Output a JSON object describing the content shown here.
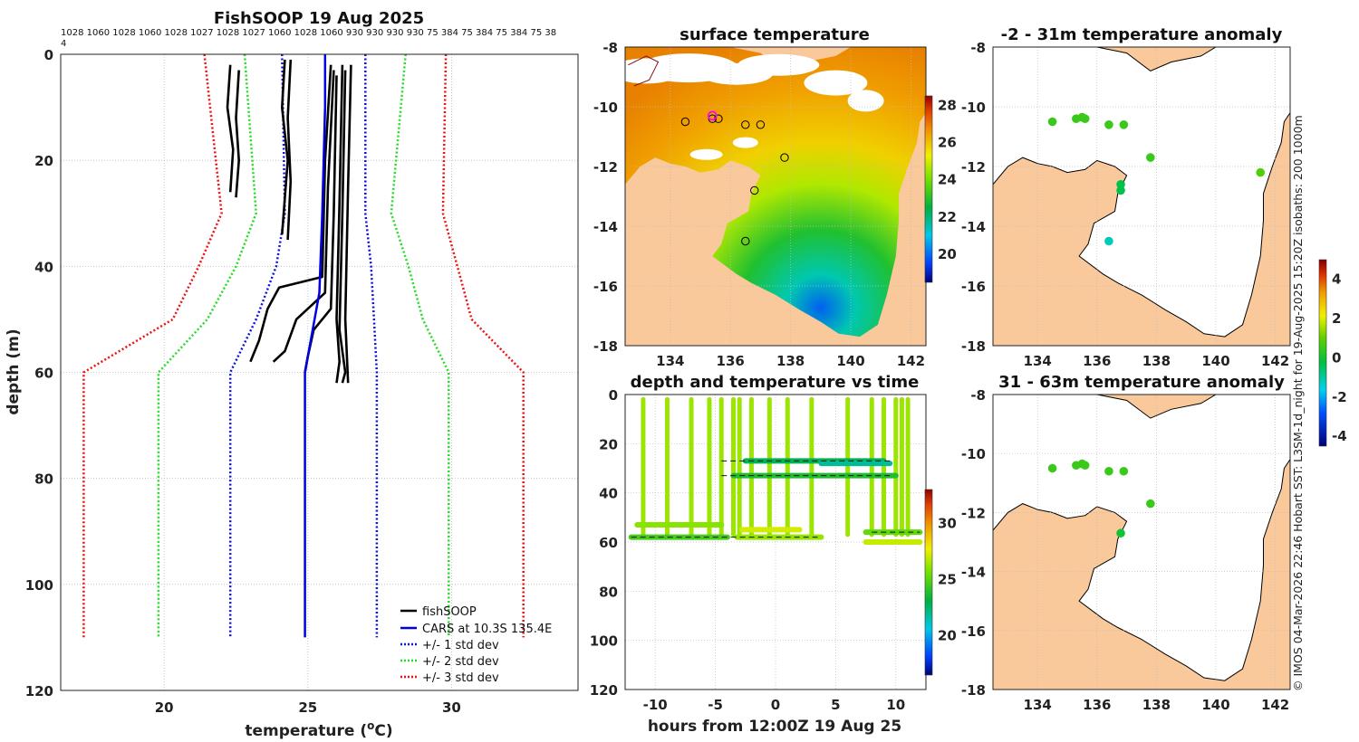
{
  "chart_data": [
    {
      "type": "line",
      "title": "FishSOOP 19 Aug 2025",
      "top_labels": [
        "1028 1060 1028 1060 1028 1027 1028 1027 1060 1028 1060 930 930 930 930 75 384 75 384 75 384 75 38",
        "4"
      ],
      "xlabel_pre": "temperature (",
      "xlabel_sup": "o",
      "xlabel_post": "C)",
      "ylabel": "depth (m)",
      "xlim": [
        16.4,
        34.4
      ],
      "ylim": [
        120,
        0
      ],
      "xticks": [
        20,
        25,
        30
      ],
      "yticks": [
        0,
        20,
        40,
        60,
        80,
        100,
        120
      ],
      "series": [
        {
          "name": "fishSOOP",
          "color": "#000000",
          "style": "solid",
          "profiles": [
            [
              [
                22.3,
                2
              ],
              [
                22.2,
                10
              ],
              [
                22.4,
                18
              ],
              [
                22.3,
                26
              ]
            ],
            [
              [
                22.6,
                3
              ],
              [
                22.5,
                12
              ],
              [
                22.6,
                20
              ],
              [
                22.5,
                27
              ]
            ],
            [
              [
                24.2,
                1
              ],
              [
                24.1,
                10
              ],
              [
                24.3,
                20
              ],
              [
                24.1,
                34
              ]
            ],
            [
              [
                24.4,
                1
              ],
              [
                24.3,
                12
              ],
              [
                24.4,
                24
              ],
              [
                24.3,
                35
              ]
            ],
            [
              [
                25.8,
                2
              ],
              [
                25.6,
                20
              ],
              [
                25.5,
                42
              ],
              [
                24.0,
                44
              ],
              [
                23.6,
                48
              ],
              [
                23.3,
                54
              ],
              [
                23.0,
                58
              ]
            ],
            [
              [
                25.9,
                3
              ],
              [
                25.7,
                25
              ],
              [
                25.6,
                45
              ],
              [
                24.6,
                50
              ],
              [
                24.2,
                56
              ],
              [
                23.8,
                58
              ]
            ],
            [
              [
                26.0,
                4
              ],
              [
                25.9,
                30
              ],
              [
                25.8,
                48
              ],
              [
                25.2,
                52
              ],
              [
                25.0,
                57
              ],
              [
                24.9,
                60
              ]
            ],
            [
              [
                26.2,
                2
              ],
              [
                26.1,
                28
              ],
              [
                26.0,
                50
              ],
              [
                26.1,
                58
              ],
              [
                26.0,
                62
              ]
            ],
            [
              [
                26.3,
                3
              ],
              [
                26.2,
                30
              ],
              [
                26.1,
                52
              ],
              [
                26.3,
                60
              ],
              [
                26.2,
                62
              ]
            ],
            [
              [
                26.5,
                2
              ],
              [
                26.4,
                25
              ],
              [
                26.3,
                50
              ],
              [
                26.4,
                62
              ]
            ]
          ]
        },
        {
          "name": "CARS at 10.3S 135.4E",
          "color": "#0000e0",
          "style": "solid",
          "points": [
            [
              25.6,
              0
            ],
            [
              25.6,
              10
            ],
            [
              25.5,
              30
            ],
            [
              25.4,
              45
            ],
            [
              24.9,
              60
            ],
            [
              24.9,
              110
            ]
          ]
        },
        {
          "name": "+/- 1 std dev",
          "color": "#1010dd",
          "style": "dotted",
          "left": [
            [
              24.1,
              0
            ],
            [
              24.2,
              30
            ],
            [
              23.9,
              40
            ],
            [
              23.2,
              50
            ],
            [
              22.3,
              60
            ],
            [
              22.3,
              110
            ]
          ],
          "right": [
            [
              27.0,
              0
            ],
            [
              27.0,
              30
            ],
            [
              27.2,
              40
            ],
            [
              27.3,
              50
            ],
            [
              27.4,
              60
            ],
            [
              27.4,
              110
            ]
          ]
        },
        {
          "name": "+/- 2 std dev",
          "color": "#22dd22",
          "style": "dotted",
          "left": [
            [
              22.8,
              0
            ],
            [
              23.2,
              30
            ],
            [
              22.5,
              40
            ],
            [
              21.5,
              50
            ],
            [
              19.8,
              60
            ],
            [
              19.8,
              110
            ]
          ],
          "right": [
            [
              28.4,
              0
            ],
            [
              27.9,
              30
            ],
            [
              28.5,
              40
            ],
            [
              29.0,
              50
            ],
            [
              29.9,
              60
            ],
            [
              29.9,
              110
            ]
          ]
        },
        {
          "name": "+/- 3 std dev",
          "color": "#ee1111",
          "style": "dotted",
          "left": [
            [
              21.4,
              0
            ],
            [
              22.0,
              30
            ],
            [
              21.2,
              40
            ],
            [
              20.3,
              50
            ],
            [
              17.2,
              60
            ],
            [
              17.2,
              110
            ]
          ],
          "right": [
            [
              29.8,
              0
            ],
            [
              29.7,
              30
            ],
            [
              30.2,
              40
            ],
            [
              30.7,
              50
            ],
            [
              32.5,
              60
            ],
            [
              32.5,
              110
            ]
          ]
        }
      ]
    },
    {
      "type": "heatmap",
      "title": "surface temperature",
      "xticks": [
        134,
        136,
        138,
        140,
        142
      ],
      "yticks": [
        -8,
        -10,
        -12,
        -14,
        -16,
        -18
      ],
      "colorbar": {
        "ticks": [
          20,
          22,
          24,
          26,
          28
        ],
        "range": [
          18.5,
          28.5
        ]
      },
      "markers": [
        [
          134.5,
          -10.5
        ],
        [
          135.4,
          -10.4
        ],
        [
          135.6,
          -10.4
        ],
        [
          136.5,
          -10.6
        ],
        [
          137.0,
          -10.6
        ],
        [
          137.8,
          -11.7
        ],
        [
          136.8,
          -12.8
        ],
        [
          136.5,
          -14.5
        ]
      ],
      "highlight": [
        135.4,
        -10.3
      ]
    },
    {
      "type": "scatter",
      "title": "depth and temperature vs time",
      "xlabel": "hours from 12:00Z 19 Aug 25",
      "xticks": [
        -10,
        -5,
        0,
        5,
        10
      ],
      "yticks": [
        0,
        20,
        40,
        60,
        80,
        100,
        120
      ],
      "xlim": [
        -12.5,
        12.5
      ],
      "ylim": [
        120,
        0
      ],
      "colorbar": {
        "ticks": [
          20,
          25,
          30
        ],
        "range": [
          16.5,
          33
        ]
      },
      "segments": [
        {
          "t0": -12.0,
          "t1": -4.0,
          "depth": 58,
          "temp": 24.6
        },
        {
          "t0": -11.5,
          "t1": -4.5,
          "depth": 53,
          "temp": 26.0
        },
        {
          "t0": -3.2,
          "t1": 3.8,
          "depth": 58,
          "temp": 26.2
        },
        {
          "t0": -2.8,
          "t1": 2.0,
          "depth": 55,
          "temp": 27.2
        },
        {
          "t0": -3.5,
          "t1": 10.0,
          "depth": 33,
          "temp": 23.8
        },
        {
          "t0": -2.5,
          "t1": 9.0,
          "depth": 27,
          "temp": 22.8
        },
        {
          "t0": 3.8,
          "t1": 9.5,
          "depth": 28,
          "temp": 21.8
        },
        {
          "t0": 7.5,
          "t1": 12.0,
          "depth": 60,
          "temp": 27.0
        },
        {
          "t0": 7.5,
          "t1": 12.0,
          "depth": 56,
          "temp": 25.2
        }
      ],
      "spikes": [
        -11.0,
        -9.0,
        -7.0,
        -5.5,
        -4.5,
        -3.5,
        -3.0,
        -2.0,
        -0.5,
        1.0,
        3.0,
        6.0,
        8.0,
        9.0,
        10.0,
        10.5,
        11.0
      ],
      "spike_temp": 26.3,
      "dashes": [
        {
          "t0": -12.0,
          "t1": 3.5,
          "depth": 58
        },
        {
          "t0": -4.5,
          "t1": 9.5,
          "depth": 33
        },
        {
          "t0": -4.5,
          "t1": 9.5,
          "depth": 27
        },
        {
          "t0": 8.0,
          "t1": 12.0,
          "depth": 56
        }
      ]
    },
    {
      "type": "scatter",
      "title": "-2 - 31m temperature anomaly",
      "xticks": [
        134,
        136,
        138,
        140,
        142
      ],
      "yticks": [
        -8,
        -10,
        -12,
        -14,
        -16,
        -18
      ],
      "points": [
        {
          "lon": 134.5,
          "lat": -10.5,
          "anomaly": 0.5
        },
        {
          "lon": 135.3,
          "lat": -10.4,
          "anomaly": 0.5
        },
        {
          "lon": 135.5,
          "lat": -10.35,
          "anomaly": 0.5
        },
        {
          "lon": 135.6,
          "lat": -10.4,
          "anomaly": 0.5
        },
        {
          "lon": 136.4,
          "lat": -10.6,
          "anomaly": 0.5
        },
        {
          "lon": 136.9,
          "lat": -10.6,
          "anomaly": 0.5
        },
        {
          "lon": 137.8,
          "lat": -11.7,
          "anomaly": 0.5
        },
        {
          "lon": 136.8,
          "lat": -12.6,
          "anomaly": -0.3
        },
        {
          "lon": 136.8,
          "lat": -12.8,
          "anomaly": -0.3
        },
        {
          "lon": 136.4,
          "lat": -14.5,
          "anomaly": -1.2
        },
        {
          "lon": 141.5,
          "lat": -12.2,
          "anomaly": 0.8
        }
      ],
      "colorbar": {
        "ticks": [
          -4,
          -2,
          0,
          2,
          4
        ],
        "range": [
          -4.5,
          5
        ]
      }
    },
    {
      "type": "scatter",
      "title": "31 - 63m temperature anomaly",
      "xticks": [
        134,
        136,
        138,
        140,
        142
      ],
      "yticks": [
        -8,
        -10,
        -12,
        -14,
        -16,
        -18
      ],
      "points": [
        {
          "lon": 134.5,
          "lat": -10.5,
          "anomaly": 0.5
        },
        {
          "lon": 135.3,
          "lat": -10.4,
          "anomaly": 0.5
        },
        {
          "lon": 135.5,
          "lat": -10.35,
          "anomaly": 0.5
        },
        {
          "lon": 135.6,
          "lat": -10.4,
          "anomaly": 0.5
        },
        {
          "lon": 136.4,
          "lat": -10.6,
          "anomaly": 0.5
        },
        {
          "lon": 136.9,
          "lat": -10.6,
          "anomaly": 0.5
        },
        {
          "lon": 137.8,
          "lat": -11.7,
          "anomaly": 0.5
        },
        {
          "lon": 136.8,
          "lat": -12.7,
          "anomaly": 0.0
        }
      ]
    }
  ],
  "map_xlim": [
    132.5,
    142.5
  ],
  "map_ylim": [
    -18,
    -8
  ],
  "side_text": "© IMOS 04-Mar-2026 22:46 Hobart SST: L3SM-1d_night for 19-Aug-2025 15:20Z isobaths: 200  1000m",
  "colors": {
    "land": "#f9c89b",
    "grid": "#c8c8c8",
    "shelf": "#8a1010"
  }
}
